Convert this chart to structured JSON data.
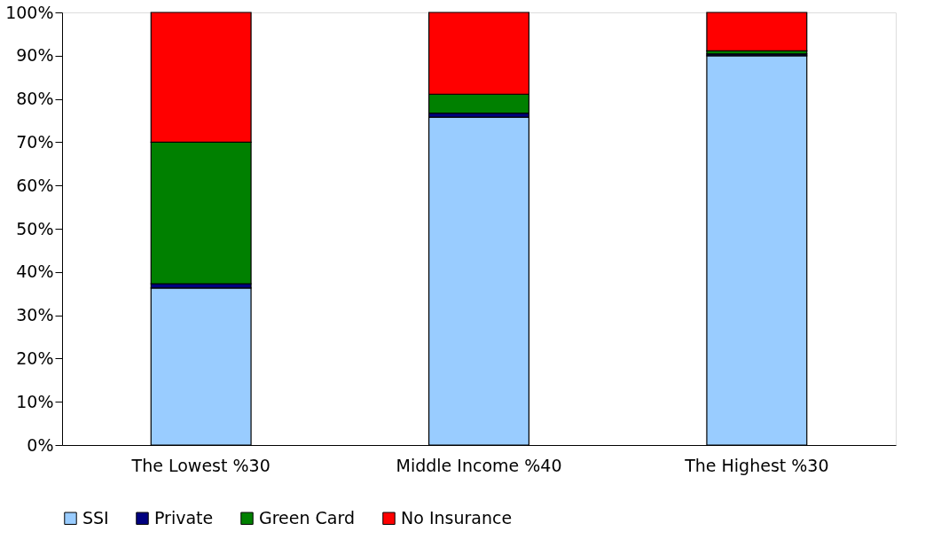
{
  "chart_data": {
    "type": "bar",
    "stacked": true,
    "categories": [
      "The Lowest   %30",
      "Middle Income  %40",
      "The Highest  %30"
    ],
    "series": [
      {
        "name": "SSI",
        "color": "#99ccff",
        "values": [
          36.3,
          75.8,
          90.0
        ]
      },
      {
        "name": "Private",
        "color": "#000080",
        "values": [
          1.0,
          0.9,
          0.4
        ]
      },
      {
        "name": "Green Card",
        "color": "#008000",
        "values": [
          32.7,
          4.4,
          0.7
        ]
      },
      {
        "name": "No Insurance",
        "color": "#ff0000",
        "values": [
          30.0,
          18.9,
          8.9
        ]
      }
    ],
    "ylim": [
      0,
      100
    ],
    "yticks": [
      {
        "value": 0,
        "label": "0%"
      },
      {
        "value": 10,
        "label": "10%"
      },
      {
        "value": 20,
        "label": "20%"
      },
      {
        "value": 30,
        "label": "30%"
      },
      {
        "value": 40,
        "label": "40%"
      },
      {
        "value": 50,
        "label": "50%"
      },
      {
        "value": 60,
        "label": "60%"
      },
      {
        "value": 70,
        "label": "70%"
      },
      {
        "value": 80,
        "label": "80%"
      },
      {
        "value": 90,
        "label": "90%"
      },
      {
        "value": 100,
        "label": "100%"
      }
    ],
    "grid": false,
    "legend": "bottom"
  }
}
